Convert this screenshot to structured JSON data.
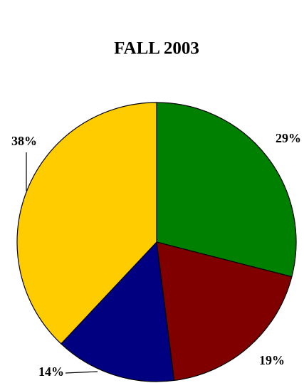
{
  "chart_data": {
    "type": "pie",
    "title": "FALL 2003",
    "values": [
      29,
      19,
      14,
      38
    ],
    "value_labels": [
      "29%",
      "19%",
      "14%",
      "38%"
    ],
    "colors": [
      "#008000",
      "#800000",
      "#000080",
      "#ffcc00"
    ]
  }
}
